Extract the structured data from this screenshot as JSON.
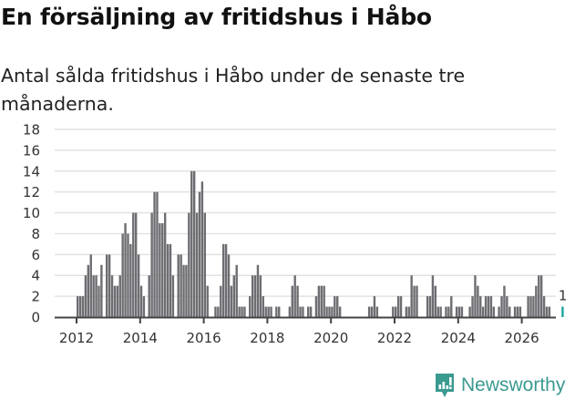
{
  "header": {
    "title": "En försäljning av fritidshus i Håbo",
    "subtitle": "Antal sålda fritidshus i Håbo under de senaste tre månaderna."
  },
  "brand": {
    "name": "Newsworthy",
    "icon": "bar-chart-speech-bubble-icon",
    "color": "#3a9a90"
  },
  "colors": {
    "bar": "#6e6d72",
    "highlight": "#1aa59a",
    "grid": "#e2e2e2",
    "axis": "#444444"
  },
  "chart_data": {
    "type": "bar",
    "title": "En försäljning av fritidshus i Håbo",
    "subtitle": "Antal sålda fritidshus i Håbo under de senaste tre månaderna.",
    "xlabel": "",
    "ylabel": "",
    "ylim": [
      0,
      18
    ],
    "yticks": [
      0,
      2,
      4,
      6,
      8,
      10,
      12,
      14,
      16,
      18
    ],
    "xticks": [
      "2012",
      "2014",
      "2016",
      "2018",
      "2020",
      "2022",
      "2024",
      "2026"
    ],
    "grid": true,
    "legend": null,
    "start": "2012-01",
    "frequency": "monthly",
    "annotation": {
      "label": "1",
      "target": "last"
    },
    "values": [
      2,
      2,
      2,
      4,
      5,
      6,
      4,
      4,
      3,
      5,
      0,
      6,
      6,
      4,
      3,
      3,
      4,
      8,
      9,
      8,
      7,
      10,
      10,
      6,
      3,
      2,
      0,
      4,
      10,
      12,
      12,
      9,
      9,
      10,
      7,
      7,
      4,
      0,
      6,
      6,
      5,
      5,
      10,
      14,
      14,
      10,
      12,
      13,
      10,
      3,
      0,
      0,
      1,
      1,
      3,
      7,
      7,
      6,
      3,
      4,
      5,
      1,
      1,
      1,
      0,
      2,
      4,
      4,
      5,
      4,
      2,
      1,
      1,
      1,
      0,
      1,
      1,
      0,
      0,
      0,
      1,
      3,
      4,
      3,
      1,
      1,
      0,
      1,
      1,
      0,
      2,
      3,
      3,
      3,
      1,
      1,
      1,
      2,
      2,
      1,
      0,
      0,
      0,
      0,
      0,
      0,
      0,
      0,
      0,
      0,
      1,
      1,
      2,
      1,
      0,
      0,
      0,
      0,
      0,
      1,
      1,
      2,
      2,
      0,
      1,
      1,
      4,
      3,
      3,
      0,
      0,
      0,
      2,
      2,
      4,
      3,
      1,
      1,
      0,
      1,
      1,
      2,
      0,
      1,
      1,
      1,
      0,
      0,
      1,
      2,
      4,
      3,
      2,
      1,
      2,
      2,
      2,
      1,
      0,
      1,
      2,
      3,
      2,
      1,
      0,
      1,
      1,
      1,
      0,
      0,
      2,
      2,
      2,
      3,
      4,
      4,
      2,
      1,
      1,
      0,
      0,
      0,
      0,
      1
    ]
  }
}
